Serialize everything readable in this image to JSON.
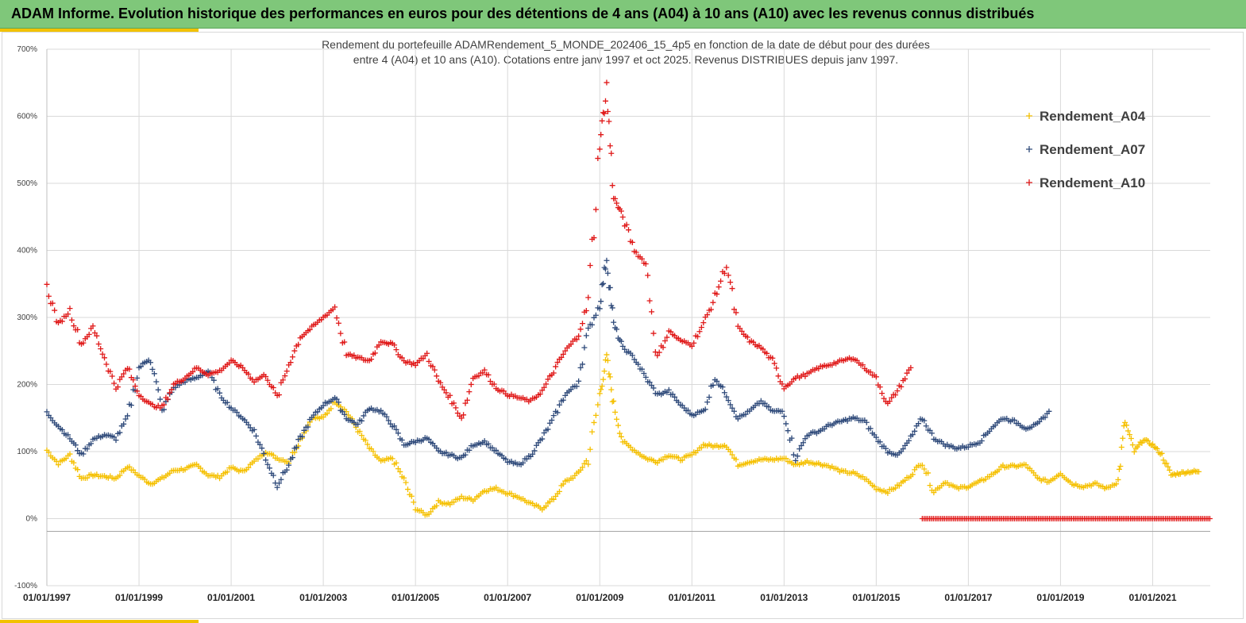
{
  "header": {
    "title": "ADAM Informe. Evolution historique des performances en euros pour des détentions de 4 ans (A04) à 10 ans (A10) avec les revenus connus distribués"
  },
  "chart_data": {
    "type": "scatter",
    "title": "Rendement du portefeuille ADAMRendement_5_MONDE_202406_15_4p5  en fonction de la date de début pour des durées",
    "subtitle": "entre 4 (A04) et 10 ans (A10). Cotations  entre janv 1997 et oct 2025. Revenus DISTRIBUES depuis janv 1997.",
    "xlabel": "",
    "ylabel": "",
    "ylim": [
      -100,
      700
    ],
    "yticks": [
      "700%",
      "600%",
      "500%",
      "400%",
      "300%",
      "200%",
      "100%",
      "0%",
      "-100%"
    ],
    "ytick_values": [
      700,
      600,
      500,
      400,
      300,
      200,
      100,
      0,
      -100
    ],
    "xlim": [
      1997.0,
      2022.25
    ],
    "xticks": [
      "01/01/1997",
      "01/01/1999",
      "01/01/2001",
      "01/01/2003",
      "01/01/2005",
      "01/01/2007",
      "01/01/2009",
      "01/01/2011",
      "01/01/2013",
      "01/01/2015",
      "01/01/2017",
      "01/01/2019",
      "01/01/2021"
    ],
    "xtick_values": [
      1997,
      1999,
      2001,
      2003,
      2005,
      2007,
      2009,
      2011,
      2013,
      2015,
      2017,
      2019,
      2021
    ],
    "grid": true,
    "legend_position": "top-right",
    "series": [
      {
        "name": "Rendement_A04",
        "color": "#f5c000",
        "marker": "plus",
        "points": [
          [
            1997.0,
            102
          ],
          [
            1997.25,
            82
          ],
          [
            1997.5,
            95
          ],
          [
            1997.75,
            60
          ],
          [
            1998.0,
            65
          ],
          [
            1998.25,
            63
          ],
          [
            1998.5,
            60
          ],
          [
            1998.75,
            78
          ],
          [
            1999.0,
            64
          ],
          [
            1999.25,
            52
          ],
          [
            1999.5,
            60
          ],
          [
            1999.75,
            72
          ],
          [
            2000.0,
            74
          ],
          [
            2000.25,
            80
          ],
          [
            2000.5,
            65
          ],
          [
            2000.75,
            62
          ],
          [
            2001.0,
            76
          ],
          [
            2001.25,
            70
          ],
          [
            2001.5,
            85
          ],
          [
            2001.75,
            100
          ],
          [
            2002.0,
            90
          ],
          [
            2002.25,
            85
          ],
          [
            2002.5,
            118
          ],
          [
            2002.75,
            150
          ],
          [
            2003.0,
            150
          ],
          [
            2003.25,
            175
          ],
          [
            2003.5,
            160
          ],
          [
            2003.75,
            132
          ],
          [
            2004.0,
            105
          ],
          [
            2004.25,
            85
          ],
          [
            2004.5,
            90
          ],
          [
            2004.75,
            58
          ],
          [
            2005.0,
            15
          ],
          [
            2005.25,
            5
          ],
          [
            2005.5,
            25
          ],
          [
            2005.75,
            22
          ],
          [
            2006.0,
            32
          ],
          [
            2006.25,
            28
          ],
          [
            2006.5,
            42
          ],
          [
            2006.75,
            45
          ],
          [
            2007.0,
            38
          ],
          [
            2007.25,
            32
          ],
          [
            2007.5,
            22
          ],
          [
            2007.75,
            15
          ],
          [
            2008.0,
            30
          ],
          [
            2008.25,
            55
          ],
          [
            2008.5,
            65
          ],
          [
            2008.75,
            90
          ],
          [
            2009.0,
            185
          ],
          [
            2009.15,
            240
          ],
          [
            2009.3,
            170
          ],
          [
            2009.5,
            115
          ],
          [
            2009.75,
            102
          ],
          [
            2010.0,
            90
          ],
          [
            2010.25,
            85
          ],
          [
            2010.5,
            95
          ],
          [
            2010.75,
            88
          ],
          [
            2011.0,
            95
          ],
          [
            2011.25,
            110
          ],
          [
            2011.5,
            108
          ],
          [
            2011.75,
            110
          ],
          [
            2012.0,
            80
          ],
          [
            2012.25,
            85
          ],
          [
            2012.5,
            88
          ],
          [
            2012.75,
            88
          ],
          [
            2013.0,
            90
          ],
          [
            2013.25,
            80
          ],
          [
            2013.5,
            85
          ],
          [
            2013.75,
            82
          ],
          [
            2014.0,
            78
          ],
          [
            2014.25,
            70
          ],
          [
            2014.5,
            68
          ],
          [
            2014.75,
            60
          ],
          [
            2015.0,
            45
          ],
          [
            2015.25,
            40
          ],
          [
            2015.5,
            50
          ],
          [
            2015.75,
            65
          ],
          [
            2016.0,
            85
          ],
          [
            2016.25,
            40
          ],
          [
            2016.5,
            55
          ],
          [
            2016.75,
            45
          ],
          [
            2017.0,
            48
          ],
          [
            2017.25,
            55
          ],
          [
            2017.5,
            65
          ],
          [
            2017.75,
            78
          ],
          [
            2018.0,
            78
          ],
          [
            2018.25,
            80
          ],
          [
            2018.5,
            60
          ],
          [
            2018.75,
            55
          ],
          [
            2019.0,
            68
          ],
          [
            2019.25,
            52
          ],
          [
            2019.5,
            48
          ],
          [
            2019.75,
            52
          ],
          [
            2020.0,
            45
          ],
          [
            2020.25,
            55
          ],
          [
            2020.4,
            145
          ],
          [
            2020.6,
            100
          ],
          [
            2020.8,
            118
          ],
          [
            2021.0,
            110
          ],
          [
            2021.2,
            95
          ],
          [
            2021.4,
            65
          ],
          [
            2021.6,
            68
          ],
          [
            2021.8,
            70
          ],
          [
            2022.0,
            70
          ]
        ]
      },
      {
        "name": "Rendement_A07",
        "color": "#2f4a7a",
        "marker": "plus",
        "points": [
          [
            1997.0,
            158
          ],
          [
            1997.25,
            138
          ],
          [
            1997.5,
            120
          ],
          [
            1997.75,
            95
          ],
          [
            1998.0,
            118
          ],
          [
            1998.25,
            125
          ],
          [
            1998.5,
            120
          ],
          [
            1998.75,
            150
          ],
          [
            1999.0,
            225
          ],
          [
            1999.25,
            240
          ],
          [
            1999.5,
            160
          ],
          [
            1999.75,
            195
          ],
          [
            2000.0,
            205
          ],
          [
            2000.25,
            210
          ],
          [
            2000.5,
            220
          ],
          [
            2000.75,
            185
          ],
          [
            2001.0,
            165
          ],
          [
            2001.25,
            150
          ],
          [
            2001.5,
            130
          ],
          [
            2001.75,
            90
          ],
          [
            2002.0,
            50
          ],
          [
            2002.25,
            80
          ],
          [
            2002.5,
            120
          ],
          [
            2002.75,
            150
          ],
          [
            2003.0,
            170
          ],
          [
            2003.25,
            180
          ],
          [
            2003.5,
            150
          ],
          [
            2003.75,
            140
          ],
          [
            2004.0,
            165
          ],
          [
            2004.25,
            160
          ],
          [
            2004.5,
            140
          ],
          [
            2004.75,
            110
          ],
          [
            2005.0,
            115
          ],
          [
            2005.25,
            120
          ],
          [
            2005.5,
            100
          ],
          [
            2005.75,
            95
          ],
          [
            2006.0,
            90
          ],
          [
            2006.25,
            110
          ],
          [
            2006.5,
            115
          ],
          [
            2006.75,
            100
          ],
          [
            2007.0,
            85
          ],
          [
            2007.25,
            80
          ],
          [
            2007.5,
            95
          ],
          [
            2007.75,
            120
          ],
          [
            2008.0,
            150
          ],
          [
            2008.25,
            185
          ],
          [
            2008.5,
            200
          ],
          [
            2008.75,
            280
          ],
          [
            2009.0,
            320
          ],
          [
            2009.15,
            390
          ],
          [
            2009.3,
            290
          ],
          [
            2009.5,
            255
          ],
          [
            2009.75,
            240
          ],
          [
            2010.0,
            210
          ],
          [
            2010.25,
            185
          ],
          [
            2010.5,
            190
          ],
          [
            2010.75,
            170
          ],
          [
            2011.0,
            155
          ],
          [
            2011.25,
            160
          ],
          [
            2011.5,
            210
          ],
          [
            2011.75,
            185
          ],
          [
            2012.0,
            150
          ],
          [
            2012.25,
            160
          ],
          [
            2012.5,
            175
          ],
          [
            2012.75,
            160
          ],
          [
            2013.0,
            160
          ],
          [
            2013.25,
            90
          ],
          [
            2013.5,
            125
          ],
          [
            2013.75,
            130
          ],
          [
            2014.0,
            140
          ],
          [
            2014.25,
            145
          ],
          [
            2014.5,
            150
          ],
          [
            2014.75,
            145
          ],
          [
            2015.0,
            120
          ],
          [
            2015.25,
            100
          ],
          [
            2015.5,
            95
          ],
          [
            2015.75,
            120
          ],
          [
            2016.0,
            150
          ],
          [
            2016.25,
            120
          ],
          [
            2016.5,
            110
          ],
          [
            2016.75,
            105
          ],
          [
            2017.0,
            108
          ],
          [
            2017.25,
            115
          ],
          [
            2017.5,
            135
          ],
          [
            2017.75,
            150
          ],
          [
            2018.0,
            145
          ],
          [
            2018.25,
            135
          ],
          [
            2018.5,
            140
          ],
          [
            2018.75,
            160
          ]
        ]
      },
      {
        "name": "Rendement_A10",
        "color": "#e01818",
        "marker": "plus",
        "points": [
          [
            1997.0,
            345
          ],
          [
            1997.25,
            290
          ],
          [
            1997.5,
            310
          ],
          [
            1997.75,
            260
          ],
          [
            1998.0,
            285
          ],
          [
            1998.25,
            240
          ],
          [
            1998.5,
            195
          ],
          [
            1998.75,
            225
          ],
          [
            1999.0,
            185
          ],
          [
            1999.25,
            170
          ],
          [
            1999.5,
            165
          ],
          [
            1999.75,
            200
          ],
          [
            2000.0,
            210
          ],
          [
            2000.25,
            225
          ],
          [
            2000.5,
            215
          ],
          [
            2000.75,
            220
          ],
          [
            2001.0,
            235
          ],
          [
            2001.25,
            225
          ],
          [
            2001.5,
            205
          ],
          [
            2001.75,
            215
          ],
          [
            2002.0,
            180
          ],
          [
            2002.25,
            230
          ],
          [
            2002.5,
            270
          ],
          [
            2002.75,
            285
          ],
          [
            2003.0,
            300
          ],
          [
            2003.25,
            315
          ],
          [
            2003.5,
            245
          ],
          [
            2003.75,
            240
          ],
          [
            2004.0,
            235
          ],
          [
            2004.25,
            265
          ],
          [
            2004.5,
            260
          ],
          [
            2004.75,
            235
          ],
          [
            2005.0,
            230
          ],
          [
            2005.25,
            245
          ],
          [
            2005.5,
            205
          ],
          [
            2005.75,
            180
          ],
          [
            2006.0,
            150
          ],
          [
            2006.25,
            210
          ],
          [
            2006.5,
            220
          ],
          [
            2006.75,
            195
          ],
          [
            2007.0,
            185
          ],
          [
            2007.25,
            180
          ],
          [
            2007.5,
            175
          ],
          [
            2007.75,
            190
          ],
          [
            2008.0,
            220
          ],
          [
            2008.25,
            250
          ],
          [
            2008.5,
            270
          ],
          [
            2008.75,
            320
          ],
          [
            2009.0,
            560
          ],
          [
            2009.15,
            640
          ],
          [
            2009.3,
            480
          ],
          [
            2009.5,
            450
          ],
          [
            2009.75,
            400
          ],
          [
            2010.0,
            380
          ],
          [
            2010.25,
            240
          ],
          [
            2010.5,
            280
          ],
          [
            2010.75,
            265
          ],
          [
            2011.0,
            260
          ],
          [
            2011.25,
            290
          ],
          [
            2011.5,
            330
          ],
          [
            2011.75,
            380
          ],
          [
            2012.0,
            285
          ],
          [
            2012.25,
            265
          ],
          [
            2012.5,
            255
          ],
          [
            2012.75,
            235
          ],
          [
            2013.0,
            195
          ],
          [
            2013.25,
            210
          ],
          [
            2013.5,
            215
          ],
          [
            2013.75,
            225
          ],
          [
            2014.0,
            230
          ],
          [
            2014.25,
            235
          ],
          [
            2014.5,
            240
          ],
          [
            2014.75,
            225
          ],
          [
            2015.0,
            210
          ],
          [
            2015.25,
            170
          ],
          [
            2015.5,
            195
          ],
          [
            2015.75,
            225
          ]
        ]
      }
    ],
    "a10_zero_range": [
      2016.0,
      2022.25
    ]
  }
}
